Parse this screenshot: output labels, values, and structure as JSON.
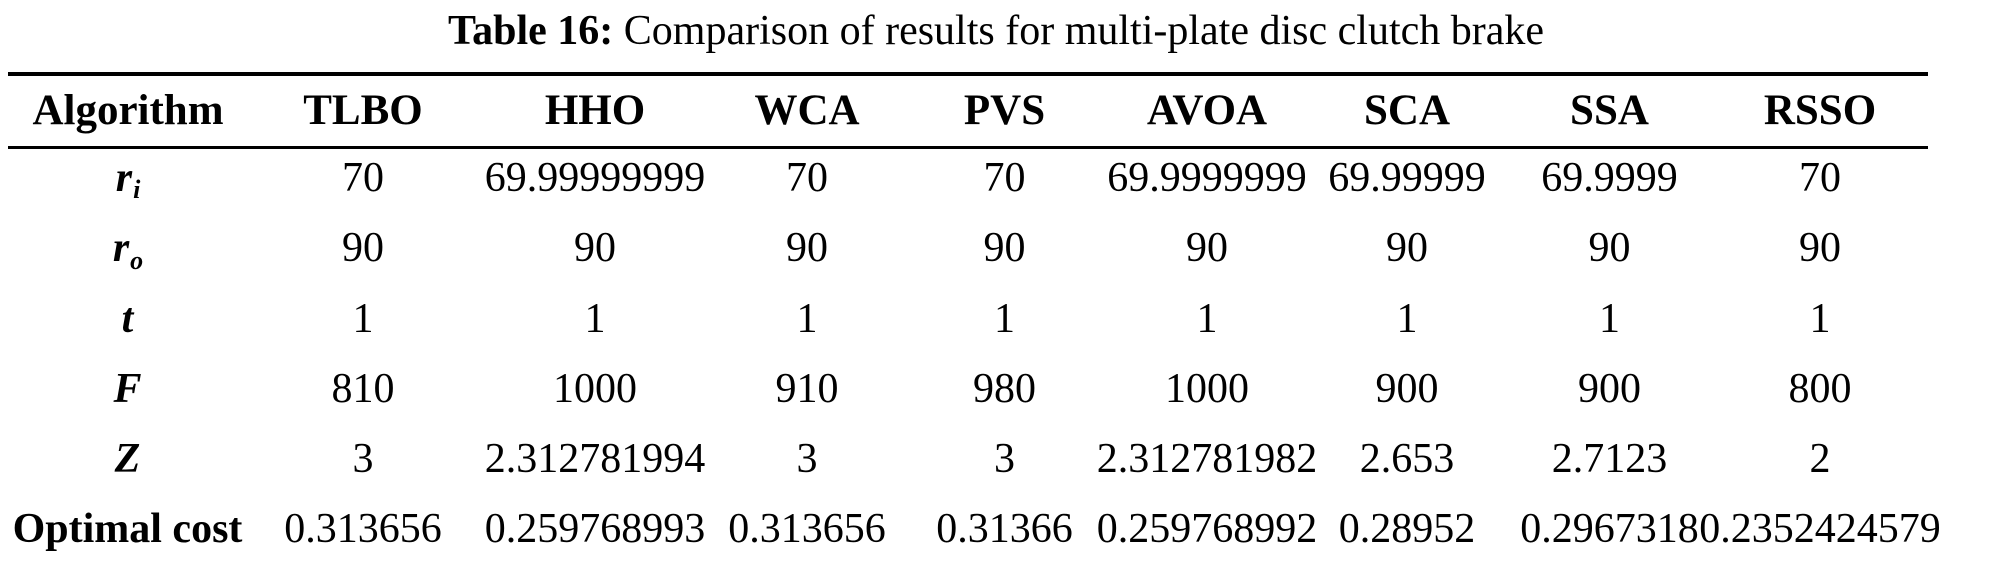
{
  "caption": {
    "label": "Table 16:",
    "text": "Comparison of results for multi-plate disc clutch brake"
  },
  "table": {
    "columns": [
      "Algorithm",
      "TLBO",
      "HHO",
      "WCA",
      "PVS",
      "AVOA",
      "SCA",
      "SSA",
      "RSSO"
    ],
    "rows": [
      {
        "label": "r",
        "sub": "i",
        "values": [
          "70",
          "69.99999999",
          "70",
          "70",
          "69.9999999",
          "69.99999",
          "69.9999",
          "70"
        ]
      },
      {
        "label": "r",
        "sub": "o",
        "values": [
          "90",
          "90",
          "90",
          "90",
          "90",
          "90",
          "90",
          "90"
        ]
      },
      {
        "label": "t",
        "sub": "",
        "values": [
          "1",
          "1",
          "1",
          "1",
          "1",
          "1",
          "1",
          "1"
        ]
      },
      {
        "label": "F",
        "sub": "",
        "values": [
          "810",
          "1000",
          "910",
          "980",
          "1000",
          "900",
          "900",
          "800"
        ]
      },
      {
        "label": "Z",
        "sub": "",
        "values": [
          "3",
          "2.312781994",
          "3",
          "3",
          "2.312781982",
          "2.653",
          "2.7123",
          "2"
        ]
      },
      {
        "label": "Optimal cost",
        "sub": "",
        "values": [
          "0.313656",
          "0.259768993",
          "0.313656",
          "0.31366",
          "0.259768992",
          "0.28952",
          "0.2967318",
          "0.2352424579"
        ]
      }
    ]
  },
  "colors": {
    "text": "#000000",
    "background": "#ffffff",
    "rule": "#000000"
  }
}
